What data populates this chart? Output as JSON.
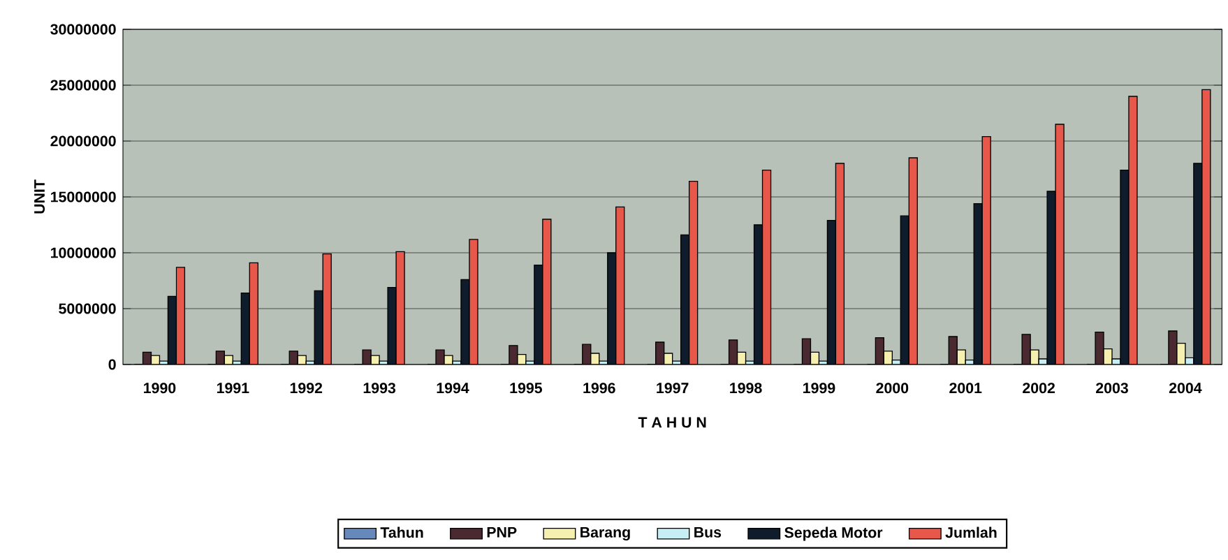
{
  "chart_data": {
    "type": "bar",
    "xlabel": "T A H U N",
    "ylabel": "UNIT",
    "categories": [
      "1990",
      "1991",
      "1992",
      "1993",
      "1994",
      "1995",
      "1996",
      "1997",
      "1998",
      "1999",
      "2000",
      "2001",
      "2002",
      "2003",
      "2004"
    ],
    "series": [
      {
        "name": "Tahun",
        "color": "#6688bb",
        "values": [
          0,
          0,
          0,
          0,
          0,
          0,
          0,
          0,
          0,
          0,
          0,
          0,
          0,
          0,
          0
        ]
      },
      {
        "name": "PNP",
        "color": "#4a2a30",
        "values": [
          1100000,
          1200000,
          1200000,
          1300000,
          1300000,
          1700000,
          1800000,
          2000000,
          2200000,
          2300000,
          2400000,
          2500000,
          2700000,
          2900000,
          3000000
        ]
      },
      {
        "name": "Barang",
        "color": "#f5f0b0",
        "values": [
          800000,
          800000,
          800000,
          800000,
          800000,
          900000,
          1000000,
          1000000,
          1100000,
          1100000,
          1200000,
          1300000,
          1300000,
          1400000,
          1900000
        ]
      },
      {
        "name": "Bus",
        "color": "#c8eef5",
        "values": [
          300000,
          300000,
          300000,
          300000,
          300000,
          300000,
          300000,
          300000,
          300000,
          300000,
          400000,
          400000,
          500000,
          500000,
          600000
        ]
      },
      {
        "name": "Sepeda Motor",
        "color": "#0f1c2c",
        "values": [
          6100000,
          6400000,
          6600000,
          6900000,
          7600000,
          8900000,
          10000000,
          11600000,
          12500000,
          12900000,
          13300000,
          14400000,
          15500000,
          17400000,
          18000000
        ]
      },
      {
        "name": "Jumlah",
        "color": "#e8584a",
        "values": [
          8700000,
          9100000,
          9900000,
          10100000,
          11200000,
          13000000,
          14100000,
          16400000,
          17400000,
          18000000,
          18500000,
          20400000,
          21500000,
          24000000,
          24600000
        ]
      }
    ],
    "ylim": [
      0,
      30000000
    ],
    "yticks": [
      0,
      5000000,
      10000000,
      15000000,
      20000000,
      25000000,
      30000000
    ],
    "grid": "y",
    "legend": "bottom"
  }
}
